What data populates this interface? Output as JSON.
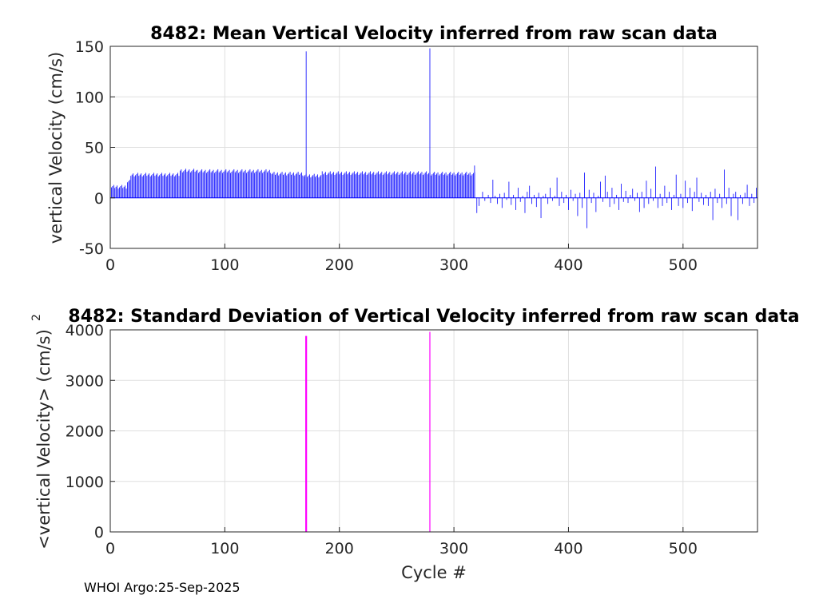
{
  "chart_data": [
    {
      "type": "bar",
      "title": "8482: Mean Vertical Velocity inferred from raw scan data",
      "xlabel": "",
      "ylabel": "vertical Velocity (cm/s)",
      "xlim": [
        0,
        565
      ],
      "ylim": [
        -50,
        150
      ],
      "x_ticks": [
        "0",
        "100",
        "200",
        "300",
        "400",
        "500"
      ],
      "y_ticks": [
        "-50",
        "0",
        "50",
        "100",
        "150"
      ],
      "x_tick_values": [
        0,
        100,
        200,
        300,
        400,
        500
      ],
      "y_tick_values": [
        -50,
        0,
        50,
        100,
        150
      ],
      "grid": true,
      "color": "#0000ff",
      "segments": [
        {
          "from": 1,
          "to": 14,
          "value": 11
        },
        {
          "from": 15,
          "to": 17,
          "value": 16
        },
        {
          "from": 18,
          "to": 60,
          "value": 23
        },
        {
          "from": 61,
          "to": 75,
          "value": 27
        },
        {
          "from": 76,
          "to": 140,
          "value": 26.5
        },
        {
          "from": 141,
          "to": 168,
          "value": 24
        },
        {
          "from": 169,
          "to": 184,
          "value": 22
        },
        {
          "from": 185,
          "to": 278,
          "value": 24.5
        },
        {
          "from": 279,
          "to": 318,
          "value": 24
        }
      ],
      "spikes": [
        {
          "x": 171,
          "value": 145
        },
        {
          "x": 279,
          "value": 148
        }
      ],
      "scattered": [
        [
          318,
          32
        ],
        [
          320,
          -15
        ],
        [
          322,
          -8
        ],
        [
          325,
          6
        ],
        [
          327,
          -3
        ],
        [
          330,
          3
        ],
        [
          332,
          -5
        ],
        [
          334,
          18
        ],
        [
          336,
          2
        ],
        [
          338,
          -6
        ],
        [
          340,
          4
        ],
        [
          342,
          -10
        ],
        [
          344,
          5
        ],
        [
          346,
          -2
        ],
        [
          348,
          16
        ],
        [
          350,
          -7
        ],
        [
          352,
          3
        ],
        [
          354,
          -12
        ],
        [
          356,
          10
        ],
        [
          358,
          -4
        ],
        [
          360,
          2
        ],
        [
          362,
          -15
        ],
        [
          364,
          6
        ],
        [
          366,
          12
        ],
        [
          368,
          -6
        ],
        [
          370,
          3
        ],
        [
          372,
          -9
        ],
        [
          374,
          5
        ],
        [
          376,
          -20
        ],
        [
          378,
          2
        ],
        [
          380,
          4
        ],
        [
          382,
          -6
        ],
        [
          384,
          10
        ],
        [
          386,
          -3
        ],
        [
          388,
          2
        ],
        [
          390,
          20
        ],
        [
          392,
          -8
        ],
        [
          394,
          6
        ],
        [
          396,
          -5
        ],
        [
          398,
          3
        ],
        [
          400,
          -12
        ],
        [
          402,
          8
        ],
        [
          404,
          -3
        ],
        [
          406,
          4
        ],
        [
          408,
          -18
        ],
        [
          410,
          5
        ],
        [
          412,
          -10
        ],
        [
          414,
          25
        ],
        [
          416,
          -30
        ],
        [
          418,
          8
        ],
        [
          420,
          -5
        ],
        [
          422,
          5
        ],
        [
          424,
          -14
        ],
        [
          426,
          2
        ],
        [
          428,
          16
        ],
        [
          430,
          -4
        ],
        [
          432,
          22
        ],
        [
          434,
          6
        ],
        [
          436,
          -9
        ],
        [
          438,
          10
        ],
        [
          440,
          -6
        ],
        [
          442,
          3
        ],
        [
          444,
          -12
        ],
        [
          446,
          14
        ],
        [
          448,
          -4
        ],
        [
          450,
          7
        ],
        [
          452,
          -5
        ],
        [
          454,
          3
        ],
        [
          456,
          9
        ],
        [
          458,
          -3
        ],
        [
          460,
          5
        ],
        [
          462,
          -14
        ],
        [
          464,
          6
        ],
        [
          466,
          -10
        ],
        [
          468,
          17
        ],
        [
          470,
          -6
        ],
        [
          472,
          9
        ],
        [
          474,
          -3
        ],
        [
          476,
          31
        ],
        [
          478,
          -10
        ],
        [
          480,
          4
        ],
        [
          482,
          -8
        ],
        [
          484,
          12
        ],
        [
          486,
          -5
        ],
        [
          488,
          6
        ],
        [
          490,
          -12
        ],
        [
          492,
          3
        ],
        [
          494,
          23
        ],
        [
          496,
          -8
        ],
        [
          498,
          4
        ],
        [
          500,
          -10
        ],
        [
          502,
          17
        ],
        [
          504,
          -5
        ],
        [
          506,
          10
        ],
        [
          508,
          -13
        ],
        [
          510,
          6
        ],
        [
          512,
          20
        ],
        [
          514,
          -4
        ],
        [
          516,
          5
        ],
        [
          518,
          -7
        ],
        [
          520,
          3
        ],
        [
          522,
          -8
        ],
        [
          524,
          6
        ],
        [
          526,
          -22
        ],
        [
          528,
          9
        ],
        [
          530,
          -5
        ],
        [
          532,
          4
        ],
        [
          534,
          -10
        ],
        [
          536,
          28
        ],
        [
          538,
          -6
        ],
        [
          540,
          10
        ],
        [
          542,
          -18
        ],
        [
          544,
          4
        ],
        [
          546,
          6
        ],
        [
          548,
          -22
        ],
        [
          550,
          3
        ],
        [
          552,
          -6
        ],
        [
          554,
          5
        ],
        [
          556,
          13
        ],
        [
          558,
          -8
        ],
        [
          560,
          4
        ],
        [
          562,
          -5
        ],
        [
          564,
          10
        ]
      ]
    },
    {
      "type": "bar",
      "title": "8482: Standard Deviation of Vertical Velocity inferred from raw scan data",
      "xlabel": "Cycle #",
      "ylabel": "<vertical Velocity> (cm/s)",
      "ylabel_superscript": "2",
      "xlim": [
        0,
        565
      ],
      "ylim": [
        0,
        4000
      ],
      "x_ticks": [
        "0",
        "100",
        "200",
        "300",
        "400",
        "500"
      ],
      "y_ticks": [
        "0",
        "1000",
        "2000",
        "3000",
        "4000"
      ],
      "x_tick_values": [
        0,
        100,
        200,
        300,
        400,
        500
      ],
      "y_tick_values": [
        0,
        1000,
        2000,
        3000,
        4000
      ],
      "grid": true,
      "color": "#ff00ff",
      "spikes": [
        {
          "x": 171,
          "value": 3880
        },
        {
          "x": 279,
          "value": 3960
        }
      ]
    }
  ],
  "footer": "WHOI Argo:25-Sep-2025"
}
